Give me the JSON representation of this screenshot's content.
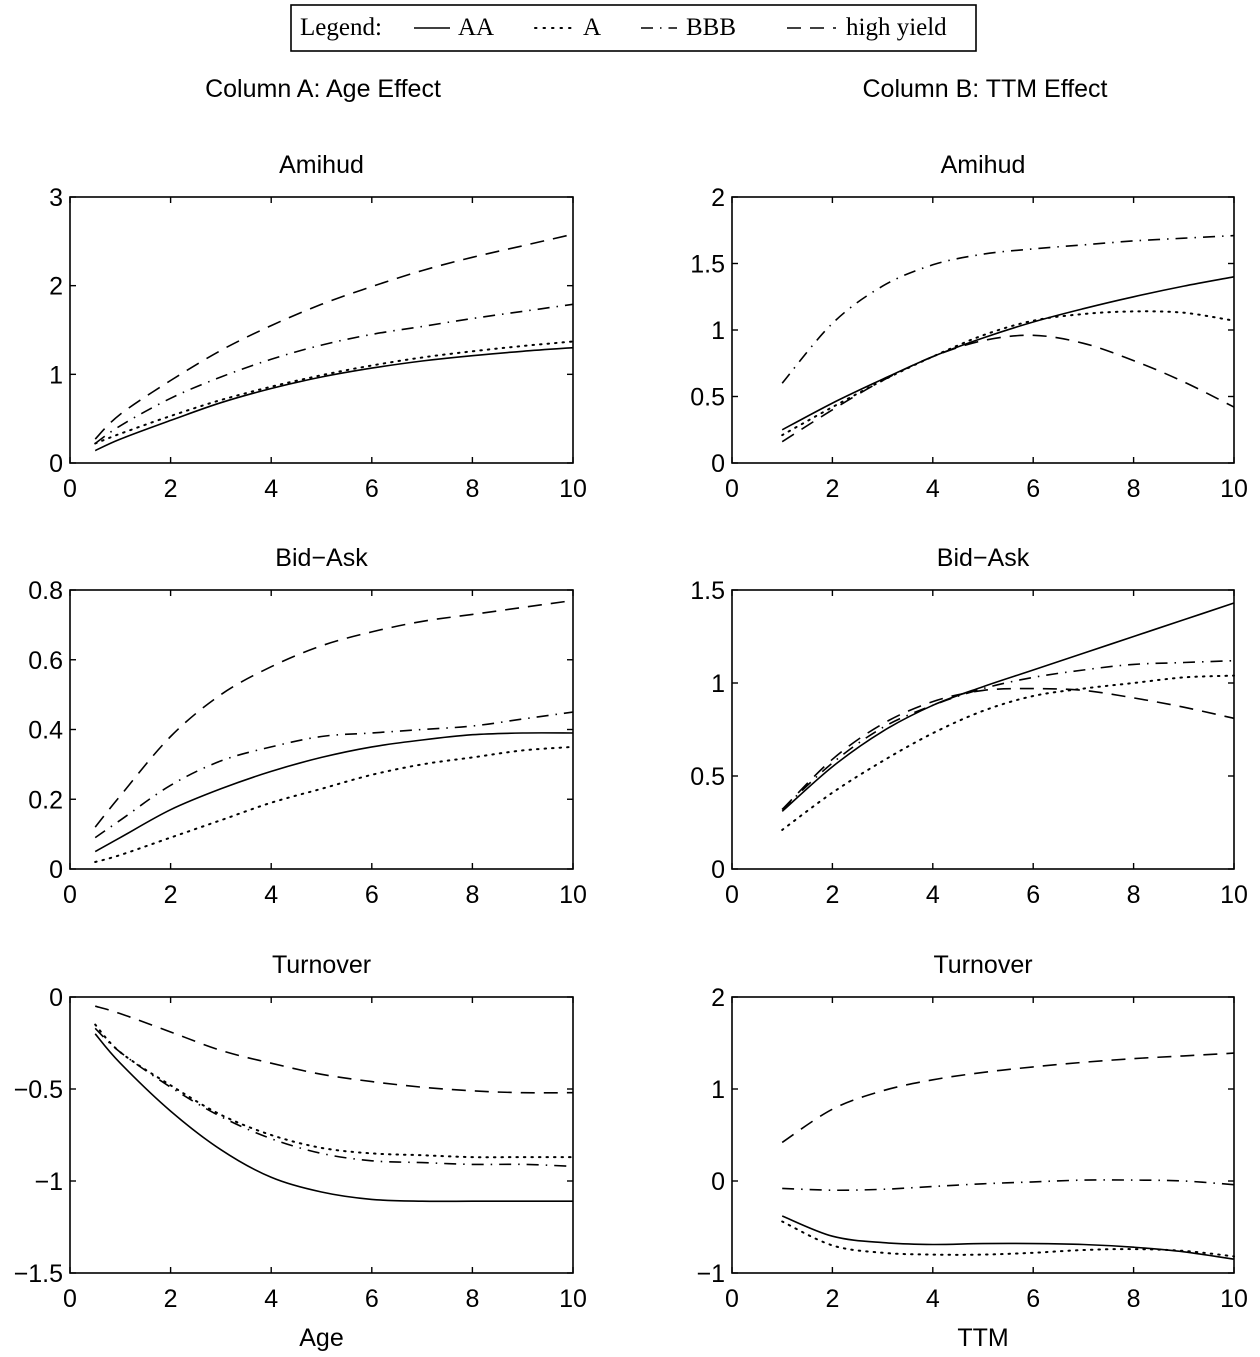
{
  "legend": {
    "prefix": "Legend:",
    "entries": [
      {
        "style": "solid",
        "label": "AA"
      },
      {
        "style": "dotted",
        "label": "A"
      },
      {
        "style": "dashdot",
        "label": "BBB"
      },
      {
        "style": "dashed",
        "label": "high yield"
      }
    ]
  },
  "columns": [
    {
      "title": "Column A: Age Effect"
    },
    {
      "title": "Column B: TTM Effect"
    }
  ],
  "chart_data": [
    {
      "type": "line",
      "column": "Column A: Age Effect",
      "title": "Amihud",
      "xlabel": "",
      "ylabel": "",
      "xlim": [
        0,
        10
      ],
      "ylim": [
        0,
        3
      ],
      "xticks": [
        0,
        2,
        4,
        6,
        8,
        10
      ],
      "yticks": [
        0,
        1,
        2,
        3
      ],
      "xtick_labels": [
        "0",
        "2",
        "4",
        "6",
        "8",
        "10"
      ],
      "ytick_labels": [
        "0",
        "1",
        "2",
        "3"
      ],
      "x": [
        0.5,
        1,
        2,
        3,
        4,
        5,
        6,
        7,
        8,
        9,
        10
      ],
      "series": [
        {
          "name": "AA",
          "style": "solid",
          "values": [
            0.14,
            0.27,
            0.48,
            0.68,
            0.84,
            0.97,
            1.07,
            1.15,
            1.21,
            1.26,
            1.3
          ]
        },
        {
          "name": "A",
          "style": "dotted",
          "values": [
            0.22,
            0.33,
            0.53,
            0.71,
            0.86,
            0.99,
            1.1,
            1.19,
            1.26,
            1.32,
            1.37
          ]
        },
        {
          "name": "BBB",
          "style": "dashdot",
          "values": [
            0.22,
            0.42,
            0.73,
            0.97,
            1.17,
            1.33,
            1.45,
            1.54,
            1.63,
            1.71,
            1.79
          ]
        },
        {
          "name": "high yield",
          "style": "dashed",
          "values": [
            0.27,
            0.55,
            0.93,
            1.27,
            1.55,
            1.79,
            1.99,
            2.17,
            2.32,
            2.45,
            2.58
          ]
        }
      ]
    },
    {
      "type": "line",
      "column": "Column B: TTM Effect",
      "title": "Amihud",
      "xlabel": "",
      "ylabel": "",
      "xlim": [
        0,
        10
      ],
      "ylim": [
        0,
        2
      ],
      "xticks": [
        0,
        2,
        4,
        6,
        8,
        10
      ],
      "yticks": [
        0,
        0.5,
        1,
        1.5,
        2
      ],
      "xtick_labels": [
        "0",
        "2",
        "4",
        "6",
        "8",
        "10"
      ],
      "ytick_labels": [
        "0",
        "0.5",
        "1",
        "1.5",
        "2"
      ],
      "x": [
        1,
        2,
        3,
        4,
        5,
        6,
        7,
        8,
        9,
        10
      ],
      "series": [
        {
          "name": "AA",
          "style": "solid",
          "values": [
            0.25,
            0.45,
            0.63,
            0.8,
            0.94,
            1.06,
            1.16,
            1.25,
            1.33,
            1.4
          ]
        },
        {
          "name": "A",
          "style": "dotted",
          "values": [
            0.21,
            0.42,
            0.62,
            0.8,
            0.96,
            1.07,
            1.12,
            1.14,
            1.13,
            1.07
          ]
        },
        {
          "name": "BBB",
          "style": "dashdot",
          "values": [
            0.6,
            1.05,
            1.33,
            1.49,
            1.57,
            1.61,
            1.64,
            1.67,
            1.69,
            1.71
          ]
        },
        {
          "name": "high yield",
          "style": "dashed",
          "values": [
            0.16,
            0.4,
            0.62,
            0.8,
            0.92,
            0.96,
            0.9,
            0.77,
            0.61,
            0.42
          ]
        }
      ]
    },
    {
      "type": "line",
      "column": "Column A: Age Effect",
      "title": "Bid−Ask",
      "xlabel": "",
      "ylabel": "",
      "xlim": [
        0,
        10
      ],
      "ylim": [
        0,
        0.8
      ],
      "xticks": [
        0,
        2,
        4,
        6,
        8,
        10
      ],
      "yticks": [
        0,
        0.2,
        0.4,
        0.6,
        0.8
      ],
      "xtick_labels": [
        "0",
        "2",
        "4",
        "6",
        "8",
        "10"
      ],
      "ytick_labels": [
        "0",
        "0.2",
        "0.4",
        "0.6",
        "0.8"
      ],
      "x": [
        0.5,
        1,
        2,
        3,
        4,
        5,
        6,
        7,
        8,
        9,
        10
      ],
      "series": [
        {
          "name": "AA",
          "style": "solid",
          "values": [
            0.05,
            0.09,
            0.17,
            0.23,
            0.28,
            0.32,
            0.35,
            0.37,
            0.385,
            0.39,
            0.39
          ]
        },
        {
          "name": "A",
          "style": "dotted",
          "values": [
            0.02,
            0.04,
            0.09,
            0.14,
            0.19,
            0.23,
            0.27,
            0.3,
            0.32,
            0.34,
            0.35
          ]
        },
        {
          "name": "BBB",
          "style": "dashdot",
          "values": [
            0.09,
            0.14,
            0.24,
            0.31,
            0.35,
            0.38,
            0.39,
            0.4,
            0.41,
            0.43,
            0.45
          ]
        },
        {
          "name": "high yield",
          "style": "dashed",
          "values": [
            0.12,
            0.21,
            0.38,
            0.5,
            0.58,
            0.64,
            0.68,
            0.71,
            0.73,
            0.75,
            0.77
          ]
        }
      ]
    },
    {
      "type": "line",
      "column": "Column B: TTM Effect",
      "title": "Bid−Ask",
      "xlabel": "",
      "ylabel": "",
      "xlim": [
        0,
        10
      ],
      "ylim": [
        0,
        1.5
      ],
      "xticks": [
        0,
        2,
        4,
        6,
        8,
        10
      ],
      "yticks": [
        0,
        0.5,
        1,
        1.5
      ],
      "xtick_labels": [
        "0",
        "2",
        "4",
        "6",
        "8",
        "10"
      ],
      "ytick_labels": [
        "0",
        "0.5",
        "1",
        "1.5"
      ],
      "x": [
        1,
        2,
        3,
        4,
        5,
        6,
        7,
        8,
        9,
        10
      ],
      "series": [
        {
          "name": "AA",
          "style": "solid",
          "values": [
            0.31,
            0.55,
            0.74,
            0.88,
            0.98,
            1.07,
            1.16,
            1.25,
            1.34,
            1.43
          ]
        },
        {
          "name": "A",
          "style": "dotted",
          "values": [
            0.21,
            0.41,
            0.58,
            0.73,
            0.85,
            0.93,
            0.97,
            1.0,
            1.03,
            1.04
          ]
        },
        {
          "name": "BBB",
          "style": "dashdot",
          "values": [
            0.32,
            0.57,
            0.76,
            0.88,
            0.97,
            1.03,
            1.07,
            1.1,
            1.11,
            1.12
          ]
        },
        {
          "name": "high yield",
          "style": "dashed",
          "values": [
            0.32,
            0.59,
            0.78,
            0.9,
            0.96,
            0.97,
            0.96,
            0.92,
            0.87,
            0.81
          ]
        }
      ]
    },
    {
      "type": "line",
      "column": "Column A: Age Effect",
      "title": "Turnover",
      "xlabel": "Age",
      "ylabel": "",
      "xlim": [
        0,
        10
      ],
      "ylim": [
        -1.5,
        0
      ],
      "xticks": [
        0,
        2,
        4,
        6,
        8,
        10
      ],
      "yticks": [
        -1.5,
        -1,
        -0.5,
        0
      ],
      "xtick_labels": [
        "0",
        "2",
        "4",
        "6",
        "8",
        "10"
      ],
      "ytick_labels": [
        "−1.5",
        "−1",
        "−0.5",
        "0"
      ],
      "x": [
        0.5,
        1,
        2,
        3,
        4,
        5,
        6,
        7,
        8,
        9,
        10
      ],
      "series": [
        {
          "name": "AA",
          "style": "solid",
          "values": [
            -0.2,
            -0.36,
            -0.62,
            -0.83,
            -0.98,
            -1.06,
            -1.1,
            -1.11,
            -1.11,
            -1.11,
            -1.11
          ]
        },
        {
          "name": "A",
          "style": "dotted",
          "values": [
            -0.15,
            -0.3,
            -0.48,
            -0.64,
            -0.75,
            -0.82,
            -0.85,
            -0.86,
            -0.87,
            -0.87,
            -0.87
          ]
        },
        {
          "name": "BBB",
          "style": "dashdot",
          "values": [
            -0.17,
            -0.3,
            -0.49,
            -0.65,
            -0.77,
            -0.85,
            -0.89,
            -0.9,
            -0.91,
            -0.91,
            -0.92
          ]
        },
        {
          "name": "high yield",
          "style": "dashed",
          "values": [
            -0.05,
            -0.09,
            -0.19,
            -0.29,
            -0.36,
            -0.42,
            -0.46,
            -0.49,
            -0.51,
            -0.52,
            -0.52
          ]
        }
      ]
    },
    {
      "type": "line",
      "column": "Column B: TTM Effect",
      "title": "Turnover",
      "xlabel": "TTM",
      "ylabel": "",
      "xlim": [
        0,
        10
      ],
      "ylim": [
        -1,
        2
      ],
      "xticks": [
        0,
        2,
        4,
        6,
        8,
        10
      ],
      "yticks": [
        -1,
        0,
        1,
        2
      ],
      "xtick_labels": [
        "0",
        "2",
        "4",
        "6",
        "8",
        "10"
      ],
      "ytick_labels": [
        "−1",
        "0",
        "1",
        "2"
      ],
      "x": [
        1,
        2,
        3,
        4,
        5,
        6,
        7,
        8,
        9,
        10
      ],
      "series": [
        {
          "name": "AA",
          "style": "solid",
          "values": [
            -0.38,
            -0.6,
            -0.67,
            -0.69,
            -0.68,
            -0.68,
            -0.69,
            -0.72,
            -0.77,
            -0.85
          ]
        },
        {
          "name": "A",
          "style": "dotted",
          "values": [
            -0.44,
            -0.7,
            -0.78,
            -0.8,
            -0.8,
            -0.78,
            -0.75,
            -0.74,
            -0.76,
            -0.82
          ]
        },
        {
          "name": "BBB",
          "style": "dashdot",
          "values": [
            -0.08,
            -0.1,
            -0.09,
            -0.06,
            -0.03,
            -0.01,
            0.01,
            0.01,
            0.0,
            -0.04
          ]
        },
        {
          "name": "high yield",
          "style": "dashed",
          "values": [
            0.42,
            0.78,
            0.98,
            1.1,
            1.18,
            1.24,
            1.29,
            1.33,
            1.36,
            1.39
          ]
        }
      ]
    }
  ]
}
